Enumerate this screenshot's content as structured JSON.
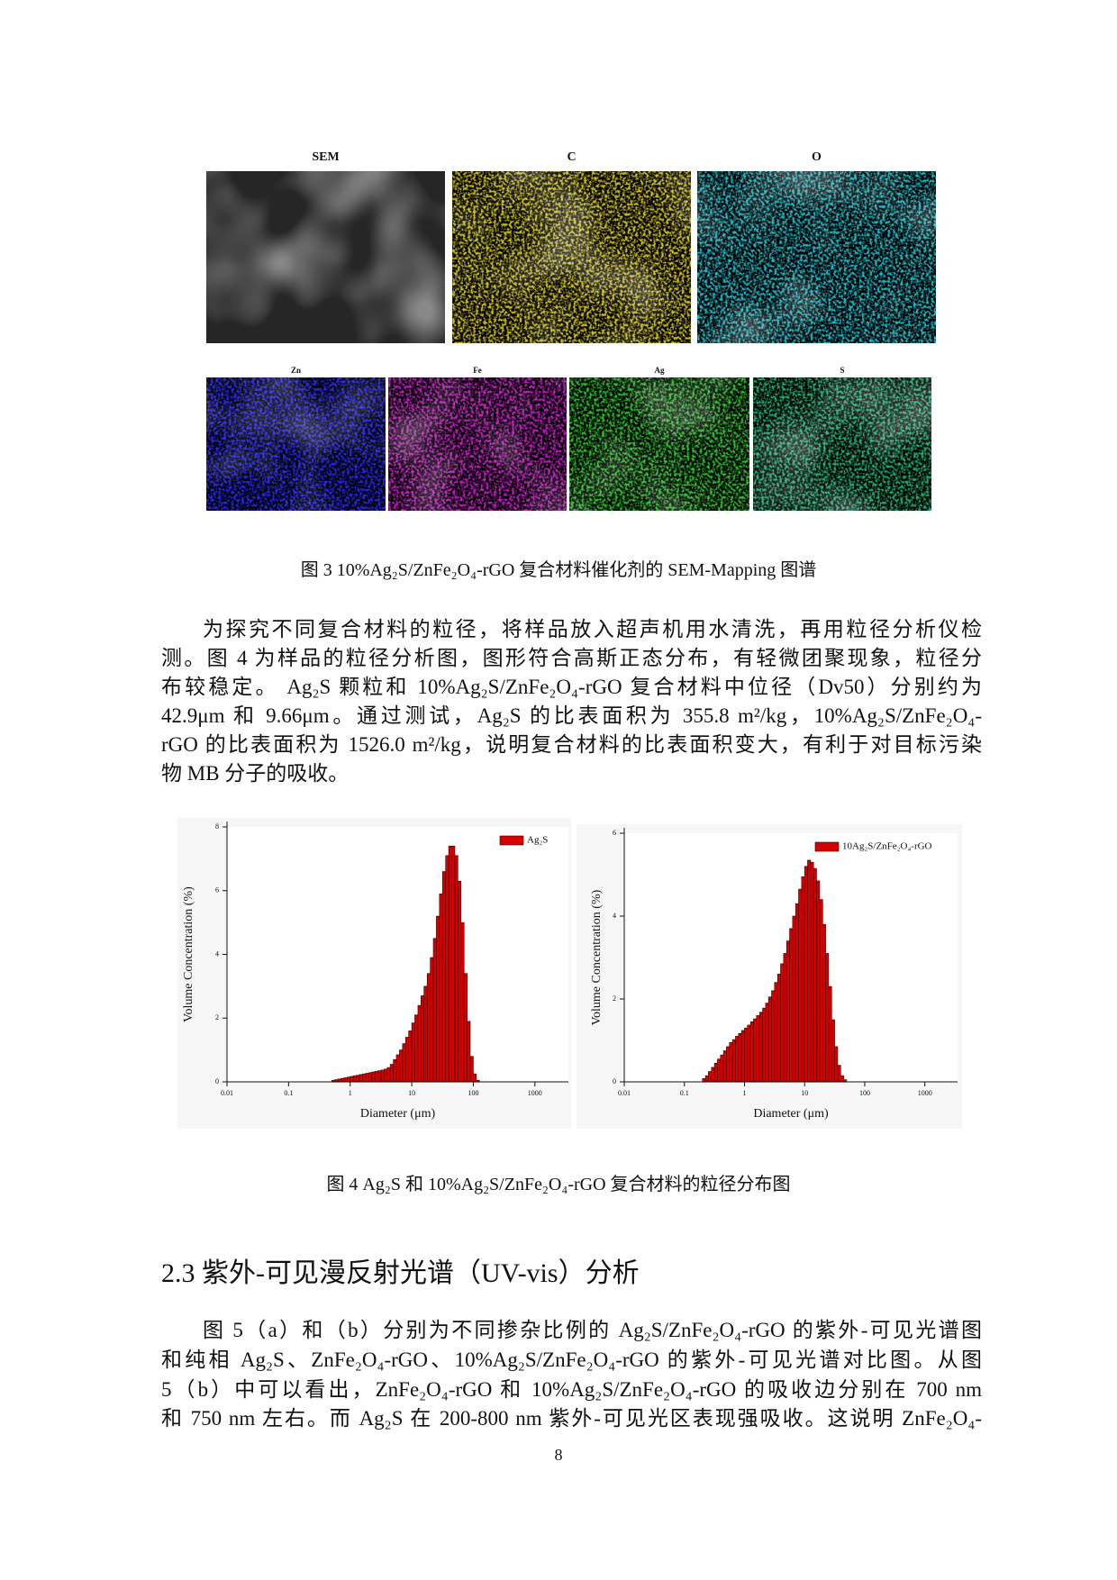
{
  "figure3": {
    "panels": [
      "SEM",
      "C",
      "O",
      "Zn",
      "Fe",
      "Ag",
      "S"
    ],
    "caption": "图 3 10%Ag₂S/ZnFe₂O₄-rGO 复合材料催化剂的 SEM-Mapping 图谱"
  },
  "paragraphs": [
    {
      "lines": [
        "为探究不同复合材料的粒径，将样品放入超声机用水清洗，再用粒径分析仪检",
        "测。图 4 为样品的粒径分析图，图形符合高斯正态分布，有轻微团聚现象，粒径分",
        "布较稳定。 Ag₂S 颗粒和 10%Ag₂S/ZnFe₂O₄-rGO 复合材料中位径（Dv50）分别约为",
        "42.9μm 和 9.66μm。通过测试，Ag₂S 的比表面积为 355.8 m²/kg，10%Ag₂S/ZnFe₂O₄-",
        "rGO 的比表面积为 1526.0 m²/kg，说明复合材料的比表面积变大，有利于对目标污染",
        "物 MB 分子的吸收。"
      ]
    },
    {
      "lines": [
        "图 5（a）和（b）分别为不同掺杂比例的 Ag₂S/ZnFe₂O₄-rGO 的紫外-可见光谱图",
        "和纯相 Ag₂S、ZnFe₂O₄-rGO、10%Ag₂S/ZnFe₂O₄-rGO 的紫外-可见光谱对比图。从图",
        "5（b）中可以看出，ZnFe₂O₄-rGO 和 10%Ag₂S/ZnFe₂O₄-rGO 的吸收边分别在 700 nm",
        "和 750 nm 左右。而 Ag₂S 在 200-800 nm 紫外-可见光区表现强吸收。这说明 ZnFe₂O₄-"
      ]
    }
  ],
  "figure4": {
    "caption": "图 4 Ag₂S 和 10%Ag₂S/ZnFe₂O₄-rGO 复合材料的粒径分布图"
  },
  "heading": "2.3 紫外-可见漫反射光谱（UV-vis）分析",
  "page_number": "8",
  "chart_data": [
    {
      "type": "histogram",
      "xlabel": "Diameter (μm)",
      "ylabel": "Volume Concentration (%)",
      "log_x": true,
      "legend": "upper right",
      "xlim": [
        0.01,
        3500
      ],
      "xticks": [
        0.01,
        0.1,
        1,
        10,
        100,
        1000
      ],
      "ylim": [
        0,
        8
      ],
      "yticks": [
        0,
        2,
        4,
        6,
        8
      ],
      "bins": [
        0.501,
        0.562,
        0.631,
        0.708,
        0.794,
        0.891,
        1,
        1.12,
        1.26,
        1.41,
        1.58,
        1.78,
        2,
        2.24,
        2.51,
        2.82,
        3.16,
        3.55,
        3.98,
        4.47,
        5.01,
        5.62,
        6.31,
        7.08,
        7.94,
        8.91,
        10,
        11.2,
        12.6,
        14.1,
        15.8,
        17.8,
        20,
        22.4,
        25.1,
        28.2,
        31.6,
        35.5,
        39.8,
        44.7,
        50.1,
        56.2,
        63.1,
        70.8,
        79.4,
        89.1,
        100,
        112,
        126
      ],
      "series": [
        {
          "name": "Ag₂S",
          "color": "#d40000",
          "values": [
            0.05,
            0.07,
            0.09,
            0.11,
            0.13,
            0.15,
            0.17,
            0.19,
            0.21,
            0.23,
            0.25,
            0.27,
            0.29,
            0.31,
            0.33,
            0.35,
            0.37,
            0.4,
            0.45,
            0.55,
            0.7,
            0.85,
            1.0,
            1.2,
            1.4,
            1.6,
            1.85,
            2.1,
            2.4,
            2.7,
            3.0,
            3.4,
            3.9,
            4.5,
            5.2,
            5.9,
            6.6,
            7.1,
            7.4,
            7.4,
            7.1,
            6.3,
            5.0,
            3.4,
            1.9,
            0.8,
            0.25,
            0.05
          ]
        }
      ]
    },
    {
      "type": "histogram",
      "xlabel": "Diameter (μm)",
      "ylabel": "Volume Concentration (%)",
      "log_x": true,
      "legend": "upper right",
      "xlim": [
        0.01,
        3500
      ],
      "xticks": [
        0.01,
        0.1,
        1,
        10,
        100,
        1000
      ],
      "ylim": [
        0,
        6
      ],
      "yticks": [
        0,
        2,
        4,
        6
      ],
      "bins": [
        0.2,
        0.224,
        0.251,
        0.282,
        0.316,
        0.355,
        0.398,
        0.447,
        0.501,
        0.562,
        0.631,
        0.708,
        0.794,
        0.891,
        1,
        1.12,
        1.26,
        1.41,
        1.58,
        1.78,
        2,
        2.24,
        2.51,
        2.82,
        3.16,
        3.55,
        3.98,
        4.47,
        5.01,
        5.62,
        6.31,
        7.08,
        7.94,
        8.91,
        10,
        11.2,
        12.6,
        14.1,
        15.8,
        17.8,
        20,
        22.4,
        25.1,
        28.2,
        31.6,
        35.5,
        39.8,
        44.7,
        50.1
      ],
      "series": [
        {
          "name": "10Ag₂S/ZnFe₂O₄-rGO",
          "color": "#d40000",
          "values": [
            0.08,
            0.15,
            0.25,
            0.35,
            0.45,
            0.55,
            0.65,
            0.75,
            0.85,
            0.95,
            1.02,
            1.1,
            1.17,
            1.24,
            1.3,
            1.37,
            1.45,
            1.52,
            1.6,
            1.68,
            1.78,
            1.9,
            2.05,
            2.2,
            2.4,
            2.6,
            2.85,
            3.1,
            3.4,
            3.7,
            4.0,
            4.3,
            4.65,
            4.95,
            5.2,
            5.35,
            5.3,
            5.15,
            4.85,
            4.4,
            3.8,
            3.1,
            2.3,
            1.5,
            0.85,
            0.4,
            0.15,
            0.05
          ]
        }
      ]
    }
  ]
}
